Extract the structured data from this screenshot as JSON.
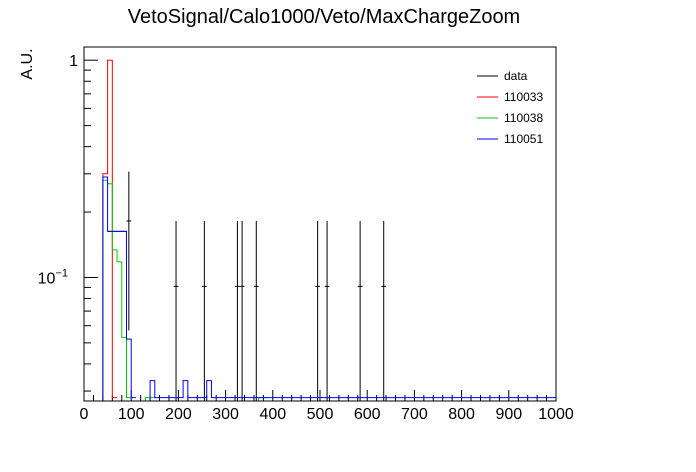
{
  "chart_data": {
    "type": "line",
    "title": "VetoSignal/Calo1000/Veto/MaxChargeZoom",
    "xlabel": "",
    "ylabel": "A.U.",
    "xlim": [
      0,
      1000
    ],
    "ylim": [
      0.027,
      1.15
    ],
    "log_y": true,
    "grid": false,
    "legend_placement": "top-right",
    "x_ticks": [
      "0",
      "100",
      "200",
      "300",
      "400",
      "500",
      "600",
      "700",
      "800",
      "900",
      "1000"
    ],
    "y_ticks": [
      {
        "value": 1,
        "label": "1"
      },
      {
        "value": 0.1,
        "label": "10",
        "exponent": "−1"
      }
    ],
    "bin_width": 10,
    "colors": {
      "data": "#000000",
      "110033": "#ff0000",
      "110038": "#00cc00",
      "110051": "#0000ff"
    },
    "series": [
      {
        "name": "data",
        "style": "points",
        "points": [
          {
            "x": 95,
            "y": 0.182,
            "yerr_low": 0.125,
            "yerr_high": 0.125
          },
          {
            "x": 195,
            "y": 0.091,
            "yerr_low": 0.065,
            "yerr_high": 0.091
          },
          {
            "x": 255,
            "y": 0.091,
            "yerr_low": 0.065,
            "yerr_high": 0.091
          },
          {
            "x": 325,
            "y": 0.091,
            "yerr_low": 0.065,
            "yerr_high": 0.091
          },
          {
            "x": 335,
            "y": 0.091,
            "yerr_low": 0.065,
            "yerr_high": 0.091
          },
          {
            "x": 365,
            "y": 0.091,
            "yerr_low": 0.065,
            "yerr_high": 0.091
          },
          {
            "x": 495,
            "y": 0.091,
            "yerr_low": 0.065,
            "yerr_high": 0.091
          },
          {
            "x": 515,
            "y": 0.091,
            "yerr_low": 0.065,
            "yerr_high": 0.091
          },
          {
            "x": 585,
            "y": 0.091,
            "yerr_low": 0.065,
            "yerr_high": 0.091
          },
          {
            "x": 635,
            "y": 0.091,
            "yerr_low": 0.065,
            "yerr_high": 0.091
          }
        ],
        "hist_bins": [
          {
            "x0": 50,
            "x1": 90,
            "y": 0.163
          }
        ]
      },
      {
        "name": "110033",
        "style": "hist",
        "bins": [
          {
            "x0": 40,
            "x1": 50,
            "y": 0.3
          },
          {
            "x0": 50,
            "x1": 60,
            "y": 1.0
          },
          {
            "x0": 60,
            "x1": 70,
            "y": 0.028
          }
        ]
      },
      {
        "name": "110038",
        "style": "hist",
        "bins": [
          {
            "x0": 40,
            "x1": 50,
            "y": 0.28
          },
          {
            "x0": 50,
            "x1": 60,
            "y": 0.27
          },
          {
            "x0": 60,
            "x1": 70,
            "y": 0.134
          },
          {
            "x0": 70,
            "x1": 80,
            "y": 0.118
          },
          {
            "x0": 80,
            "x1": 90,
            "y": 0.053
          },
          {
            "x0": 90,
            "x1": 100,
            "y": 0.028
          },
          {
            "x0": 130,
            "x1": 150,
            "y": 0.028
          },
          {
            "x0": 370,
            "x1": 390,
            "y": 0.028
          }
        ]
      },
      {
        "name": "110051",
        "style": "hist",
        "bins": [
          {
            "x0": 40,
            "x1": 50,
            "y": 0.29
          },
          {
            "x0": 50,
            "x1": 90,
            "y": 0.163
          },
          {
            "x0": 90,
            "x1": 100,
            "y": 0.052
          },
          {
            "x0": 100,
            "x1": 110,
            "y": 0.028
          },
          {
            "x0": 140,
            "x1": 150,
            "y": 0.0335
          },
          {
            "x0": 150,
            "x1": 210,
            "y": 0.028
          },
          {
            "x0": 210,
            "x1": 220,
            "y": 0.0335
          },
          {
            "x0": 220,
            "x1": 260,
            "y": 0.028
          },
          {
            "x0": 260,
            "x1": 270,
            "y": 0.0335
          },
          {
            "x0": 270,
            "x1": 1000,
            "y": 0.028
          }
        ]
      }
    ]
  }
}
